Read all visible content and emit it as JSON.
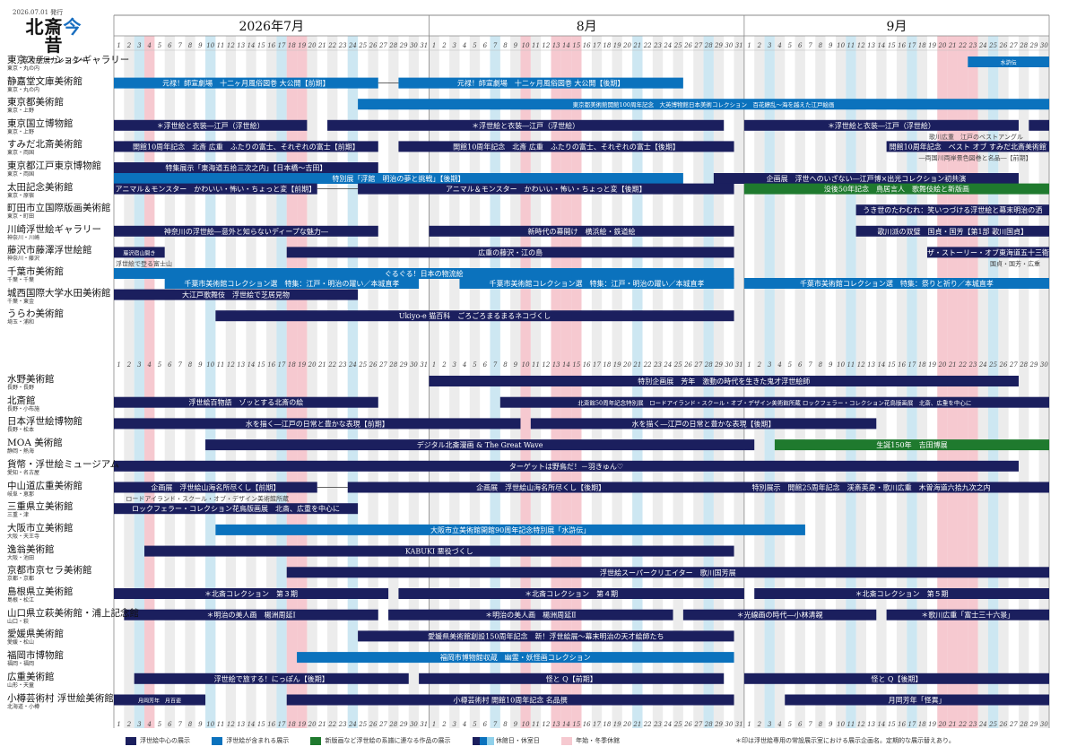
{
  "header": {
    "pub_date": "2026.07.01 発行",
    "logo_a": "北斎",
    "logo_b": "今",
    "logo_c": "昔",
    "subtitle": "浮世絵展カレンダー"
  },
  "months": [
    {
      "label": "2026年7月",
      "days": 31
    },
    {
      "label": "8月",
      "days": 31
    },
    {
      "label": "9月",
      "days": 30
    }
  ],
  "colors": {
    "dark": "#1b1f5e",
    "blue": "#0b72bd",
    "green": "#1f7a2e",
    "grey": "#ececec",
    "lightblue": "#cde7f2",
    "pink": "#f6c9d0",
    "grid": "#999999"
  },
  "holidays": {
    "pink": [
      [
        0,
        4
      ],
      [
        0,
        18
      ],
      [
        0,
        19
      ],
      [
        1,
        10
      ],
      [
        1,
        13
      ],
      [
        1,
        14
      ],
      [
        1,
        15
      ],
      [
        2,
        20
      ],
      [
        2,
        21
      ],
      [
        2,
        22
      ],
      [
        2,
        23
      ]
    ],
    "lightblue": [
      [
        0,
        3
      ],
      [
        0,
        10
      ],
      [
        0,
        17
      ],
      [
        0,
        24
      ],
      [
        1,
        7
      ],
      [
        1,
        21
      ],
      [
        1,
        28
      ],
      [
        2,
        3
      ],
      [
        2,
        11
      ],
      [
        2,
        17
      ],
      [
        2,
        25
      ]
    ]
  },
  "venues": [
    {
      "name": "東京ステーションギャラリー",
      "addr": "東京・丸の内"
    },
    {
      "name": "静嘉堂文庫美術館",
      "addr": "東京・丸の内"
    },
    {
      "name": "東京都美術館",
      "addr": "東京・上野"
    },
    {
      "name": "東京国立博物館",
      "addr": "東京・上野"
    },
    {
      "name": "すみだ北斎美術館",
      "addr": "東京・両国"
    },
    {
      "name": "東京都江戸東京博物館",
      "addr": "東京・両国"
    },
    {
      "name": "太田記念美術館",
      "addr": "東京・原宿"
    },
    {
      "name": "町田市立国際版画美術館",
      "addr": "東京・町田"
    },
    {
      "name": "川崎浮世絵ギャラリー",
      "addr": "神奈川・川崎"
    },
    {
      "name": "藤沢市藤澤浮世絵館",
      "addr": "神奈川・藤沢"
    },
    {
      "name": "千葉市美術館",
      "addr": "千葉・千葉"
    },
    {
      "name": "城西国際大学水田美術館",
      "addr": "千葉・東金"
    },
    {
      "name": "うらわ美術館",
      "addr": "埼玉・浦和"
    },
    {
      "name": "水野美術館",
      "addr": "長野・長野"
    },
    {
      "name": "北斎館",
      "addr": "長野・小布施"
    },
    {
      "name": "日本浮世絵博物館",
      "addr": "長野・松本"
    },
    {
      "name": "MOA 美術館",
      "addr": "静岡・熱海"
    },
    {
      "name": "貨幣・浮世絵ミュージアム",
      "addr": "愛知・名古屋"
    },
    {
      "name": "中山道広重美術館",
      "addr": "岐阜・恵那"
    },
    {
      "name": "三重県立美術館",
      "addr": "三重・津"
    },
    {
      "name": "大阪市立美術館",
      "addr": "大阪・天王寺"
    },
    {
      "name": "逸翁美術館",
      "addr": "大阪・池田"
    },
    {
      "name": "京都市京セラ美術館",
      "addr": "京都・京都"
    },
    {
      "name": "島根県立美術館",
      "addr": "島根・松江"
    },
    {
      "name": "山口県立萩美術館・浦上記念館",
      "addr": "山口・萩"
    },
    {
      "name": "愛媛県美術館",
      "addr": "愛媛・松山"
    },
    {
      "name": "福岡市博物館",
      "addr": "福岡・福岡"
    },
    {
      "name": "広重美術館",
      "addr": "山形・天童"
    },
    {
      "name": "小樽芸術村 浮世絵美術館",
      "addr": "北海道・小樽"
    }
  ],
  "bars": [
    {
      "row": 0,
      "s": 84,
      "e": 92,
      "c": "blue",
      "label": "水滸伝",
      "dy": 0
    },
    {
      "row": 1,
      "s": 0,
      "e": 26,
      "c": "blue",
      "label": "元禄！師宣劇場　十二ヶ月風俗図巻 大公開【前期】",
      "dy": 0
    },
    {
      "row": 1,
      "s": 28,
      "e": 56,
      "c": "blue",
      "label": "元禄！師宣劇場　十二ヶ月風俗図巻 大公開【後期】",
      "dy": 0
    },
    {
      "row": 2,
      "s": 24,
      "e": 92,
      "c": "blue",
      "label": "東京都美術館開館100周年記念　大英博物館日本美術コレクション　百花繚乱～海を越えた江戸絵画",
      "dy": 0
    },
    {
      "row": 3,
      "s": 0,
      "e": 19,
      "c": "dark",
      "label": "＊浮世絵と衣装―江戸（浮世絵）",
      "dy": 0
    },
    {
      "row": 3,
      "s": 21,
      "e": 60,
      "c": "dark",
      "label": "＊浮世絵と衣装―江戸（浮世絵）",
      "dy": 0
    },
    {
      "row": 3,
      "s": 62,
      "e": 89,
      "c": "dark",
      "label": "＊浮世絵と衣装―江戸（浮世絵）",
      "dy": 0
    },
    {
      "row": 3,
      "s": 90,
      "e": 92,
      "c": "dark",
      "label": "",
      "dy": 0
    },
    {
      "row": 4,
      "s": 0,
      "e": 26,
      "c": "dark",
      "label": "開館10周年記念　北斎 広重　ふたりの富士、それぞれの富士【前期】",
      "dy": 0
    },
    {
      "row": 4,
      "s": 28,
      "e": 61,
      "c": "dark",
      "label": "開館10周年記念　北斎 広重　ふたりの富士、それぞれの富士【後期】",
      "dy": 0
    },
    {
      "row": 4,
      "s": 76,
      "e": 92,
      "c": "dark",
      "label": "開館10周年記念　ベスト オブ すみだ北斎美術館",
      "dy": 0
    },
    {
      "row": 5,
      "s": 0,
      "e": 26,
      "c": "dark",
      "label": "特集展示「東海道五拾三次之内」【日本橋～吉田】",
      "dy": 0
    },
    {
      "row": 5,
      "s": 0,
      "e": 56,
      "c": "blue",
      "label": "特別展「浮館　明治の夢と挑戦」【後期】",
      "dy": 12
    },
    {
      "row": 5,
      "s": 59,
      "e": 89,
      "c": "dark",
      "label": "企画展　浮世へのいざない―江戸博×出光コレクション初共演",
      "dy": 12
    },
    {
      "row": 6,
      "s": 0,
      "e": 20,
      "c": "dark",
      "label": "アニマル＆モンスター　かわいい・怖い・ちょっと変【前期】",
      "dy": 0
    },
    {
      "row": 6,
      "s": 24,
      "e": 61,
      "c": "dark",
      "label": "アニマル＆モンスター　かわいい・怖い・ちょっと変【後期】",
      "dy": 0
    },
    {
      "row": 6,
      "s": 62,
      "e": 92,
      "c": "green",
      "label": "没後50年記念　鳥居言人　歌舞伎絵と新版画",
      "dy": 0
    },
    {
      "row": 7,
      "s": 73,
      "e": 92,
      "c": "dark",
      "label": "うき世のたわむれ：笑いつづける浮世絵と幕末明治の洒",
      "dy": 0
    },
    {
      "row": 8,
      "s": 0,
      "e": 26,
      "c": "dark",
      "label": "神奈川の浮世絵―意外と知らないディープな魅力―",
      "dy": 0
    },
    {
      "row": 8,
      "s": 31,
      "e": 61,
      "c": "dark",
      "label": "新時代の幕開け　横浜絵・鉄道絵",
      "dy": 0
    },
    {
      "row": 8,
      "s": 73,
      "e": 92,
      "c": "dark",
      "label": "歌川派の双璧　国貞・国芳【第1部 歌川国貞】",
      "dy": 0
    },
    {
      "row": 9,
      "s": 0,
      "e": 5,
      "c": "dark",
      "label": "藤沢宿山開き",
      "dy": 0
    },
    {
      "row": 9,
      "s": 17,
      "e": 61,
      "c": "dark",
      "label": "広重の藤沢・江の島",
      "dy": 0
    },
    {
      "row": 9,
      "s": 80,
      "e": 92,
      "c": "dark",
      "label": "ザ・ストーリー・オブ東海道五十三衛",
      "dy": 0
    },
    {
      "row": 10,
      "s": 0,
      "e": 61,
      "c": "blue",
      "label": "ぐるぐる！日本の物流絵",
      "dy": 0
    },
    {
      "row": 10,
      "s": 5,
      "e": 30,
      "c": "blue",
      "label": "千葉市美術館コレクション選　特集：江戸・明治の躍い／本城直孝",
      "dy": 11
    },
    {
      "row": 10,
      "s": 34,
      "e": 61,
      "c": "blue",
      "label": "千葉市美術館コレクション選　特集：江戸・明治の躍い／本城直孝",
      "dy": 11
    },
    {
      "row": 10,
      "s": 62,
      "e": 92,
      "c": "blue",
      "label": "千葉市美術館コレクション選　特集：祭りと祈り／本城直孝",
      "dy": 11
    },
    {
      "row": 11,
      "s": 0,
      "e": 24,
      "c": "dark",
      "label": "大江戸歌舞伎　浮世絵で芝居見物",
      "dy": 0
    },
    {
      "row": 12,
      "s": 10,
      "e": 61,
      "c": "dark",
      "label": "Ukiyo-e 猫百科　ごろごろまるまるネコづくし",
      "dy": 0
    },
    {
      "row": 13,
      "s": 31,
      "e": 89,
      "c": "dark",
      "label": "特別企画展　芳年　激動の時代を生きた鬼才浮世絵師",
      "dy": 0
    },
    {
      "row": 14,
      "s": 0,
      "e": 26,
      "c": "dark",
      "label": "浮世絵百物語　ゾッとする北斎の絵",
      "dy": 0
    },
    {
      "row": 14,
      "s": 38,
      "e": 92,
      "c": "dark",
      "label": "北斎館50周年記念特別展　ロードアイランド・スクール・オブ・デザイン美術館所蔵 ロックフェラー・コレクション花鳥版画展　北斎、広重を中心に",
      "dy": 0
    },
    {
      "row": 15,
      "s": 0,
      "e": 40,
      "c": "dark",
      "label": "水を描く―江戸の日常と豊かな表現【前期】",
      "dy": 0
    },
    {
      "row": 15,
      "s": 41,
      "e": 75,
      "c": "dark",
      "label": "水を描く―江戸の日常と豊かな表現【後期】",
      "dy": 0
    },
    {
      "row": 16,
      "s": 9,
      "e": 63,
      "c": "dark",
      "label": "デジタル北斎漫画 & The Great Wave",
      "dy": 0
    },
    {
      "row": 16,
      "s": 65,
      "e": 92,
      "c": "green",
      "label": "生誕150年　吉田博展",
      "dy": 0
    },
    {
      "row": 17,
      "s": 0,
      "e": 89,
      "c": "dark",
      "label": "ターゲットは野鳥だ！－羽きゅん♡",
      "dy": 0
    },
    {
      "row": 18,
      "s": 0,
      "e": 20,
      "c": "dark",
      "label": "企画展　浮世絵山海名所尽くし【前期】",
      "dy": 0
    },
    {
      "row": 18,
      "s": 23,
      "e": 61,
      "c": "dark",
      "label": "企画展　浮世絵山海名所尽くし【後期】",
      "dy": 0
    },
    {
      "row": 18,
      "s": 57,
      "e": 92,
      "c": "dark",
      "label": "特別展示　開館25周年記念　渓斎英泉・歌川広重　木曽海道六拾九次之内",
      "dy": 0
    },
    {
      "row": 19,
      "s": 0,
      "e": 24,
      "c": "dark",
      "label": "ロックフェラー・コレクション花鳥版画展　北斎、広重を中心に",
      "dy": 0
    },
    {
      "row": 20,
      "s": 10,
      "e": 68,
      "c": "blue",
      "label": "大阪市立美術館開館90周年記念特別展「水滸伝」",
      "dy": 0
    },
    {
      "row": 21,
      "s": 3,
      "e": 61,
      "c": "dark",
      "label": "KABUKI 悪役づくし",
      "dy": 0
    },
    {
      "row": 22,
      "s": 17,
      "e": 92,
      "c": "dark",
      "label": "浮世絵スーパークリエイター　歌川国芳展",
      "dy": 0
    },
    {
      "row": 23,
      "s": 0,
      "e": 27,
      "c": "dark",
      "label": "＊北斎コレクション　第３期",
      "dy": 0
    },
    {
      "row": 23,
      "s": 28,
      "e": 62,
      "c": "dark",
      "label": "＊北斎コレクション　第４期",
      "dy": 0
    },
    {
      "row": 23,
      "s": 63,
      "e": 92,
      "c": "dark",
      "label": "＊北斎コレクション　第５期",
      "dy": 0
    },
    {
      "row": 24,
      "s": 1,
      "e": 26,
      "c": "dark",
      "label": "＊明治の美人画　楊洲周延Ⅰ",
      "dy": 0
    },
    {
      "row": 24,
      "s": 27,
      "e": 55,
      "c": "dark",
      "label": "＊明治の美人画　楊洲周延Ⅱ",
      "dy": 0
    },
    {
      "row": 24,
      "s": 56,
      "e": 75,
      "c": "dark",
      "label": "＊光線画の時代―小林清親",
      "dy": 0
    },
    {
      "row": 24,
      "s": 76,
      "e": 92,
      "c": "dark",
      "label": "＊歌川広重「富士三十六景」",
      "dy": 0
    },
    {
      "row": 25,
      "s": 24,
      "e": 61,
      "c": "dark",
      "label": "愛媛県美術館創設150周年記念　新！浮世絵展～幕末明治の天才絵師たち",
      "dy": 0
    },
    {
      "row": 26,
      "s": 18,
      "e": 61,
      "c": "blue",
      "label": "福岡市博物館収蔵　幽霊・妖怪画コレクション",
      "dy": 0
    },
    {
      "row": 27,
      "s": 2,
      "e": 29,
      "c": "dark",
      "label": "浮世絵で旅する！にっぽん【後期】",
      "dy": 0
    },
    {
      "row": 27,
      "s": 30,
      "e": 60,
      "c": "dark",
      "label": "怪と Q【前期】",
      "dy": 0
    },
    {
      "row": 27,
      "s": 62,
      "e": 92,
      "c": "dark",
      "label": "怪と Q【後期】",
      "dy": 0
    },
    {
      "row": 28,
      "s": 0,
      "e": 9,
      "c": "dark",
      "label": "月岡芳年　月百姿",
      "dy": 0
    },
    {
      "row": 28,
      "s": 17,
      "e": 61,
      "c": "dark",
      "label": "小樽芸術村 開館10周年記念 名品撰",
      "dy": 0
    },
    {
      "row": 28,
      "s": 66,
      "e": 92,
      "c": "dark",
      "label": "月岡芳年「怪異」",
      "dy": 0
    }
  ],
  "notes": [
    {
      "row": 3,
      "d": 80,
      "label": "歌川広重　江戸のベストアングル"
    },
    {
      "row": 4,
      "d": 79,
      "label": "―両国川両岸景色図巻と名品―【前期】"
    },
    {
      "row": 9,
      "d": 0,
      "label": "浮世絵で登る富士山"
    },
    {
      "row": 9,
      "d": 86,
      "label": "国貞・国芳・広重"
    },
    {
      "row": 18,
      "d": 1,
      "label": "ロードアイランド・スクール・オブ・デザイン美術館所蔵"
    }
  ],
  "legend": [
    {
      "color": "dark",
      "label": "浮世絵中心の展示"
    },
    {
      "color": "blue",
      "label": "浮世絵が含まれる展示"
    },
    {
      "color": "green",
      "label": "新版画など浮世絵の系譜に連なる作品の展示"
    },
    {
      "color": "holiday",
      "label": "休館日・休室日"
    },
    {
      "color": "pink",
      "label": "年始・冬季休館"
    }
  ],
  "footnote": "＊印は浮世絵専用の常設展示室における展示企画名。定期的な展示替えあり。"
}
